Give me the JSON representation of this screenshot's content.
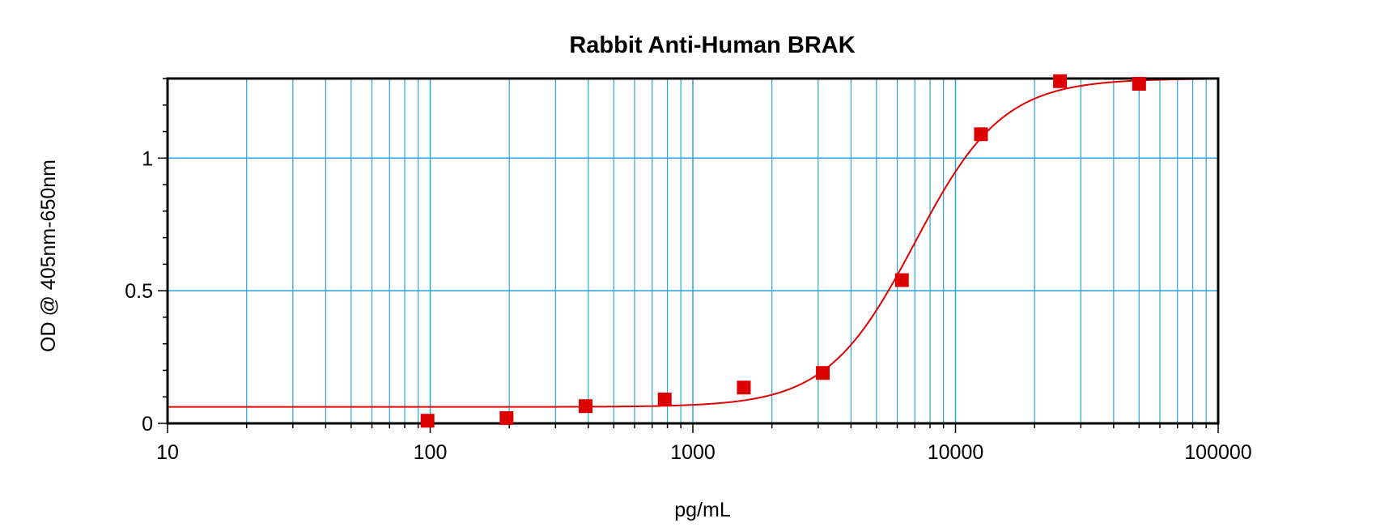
{
  "chart_data": {
    "type": "scatter",
    "title": "Rabbit Anti-Human BRAK",
    "xlabel": "pg/mL",
    "ylabel": "OD @ 405nm-650nm",
    "x_scale": "log",
    "xlim": [
      10,
      100000
    ],
    "ylim": [
      0,
      1.3
    ],
    "x_ticks": [
      10,
      100,
      1000,
      10000,
      100000
    ],
    "x_tick_labels": [
      "10",
      "100",
      "1000",
      "10000",
      "100000"
    ],
    "y_ticks": [
      0,
      0.5,
      1
    ],
    "y_tick_labels": [
      "0",
      "0.5",
      "1"
    ],
    "grid": true,
    "legend": "none",
    "series": [
      {
        "kind": "points",
        "marker": "square",
        "x": [
          97.66,
          195.3,
          390.6,
          781.3,
          1563,
          3125,
          6250,
          12500,
          25000,
          50000
        ],
        "y": [
          0.01,
          0.02,
          0.065,
          0.09,
          0.135,
          0.19,
          0.54,
          1.09,
          1.29,
          1.28
        ]
      },
      {
        "kind": "fit-curve",
        "model": "4PL",
        "bottom": 0.062,
        "top": 1.3,
        "ec50": 7000,
        "hill": 2.6
      }
    ],
    "colors": {
      "points": "#dd0000",
      "curve": "#dd0000",
      "grid": "#29a3dc",
      "frame": "#000000"
    }
  }
}
